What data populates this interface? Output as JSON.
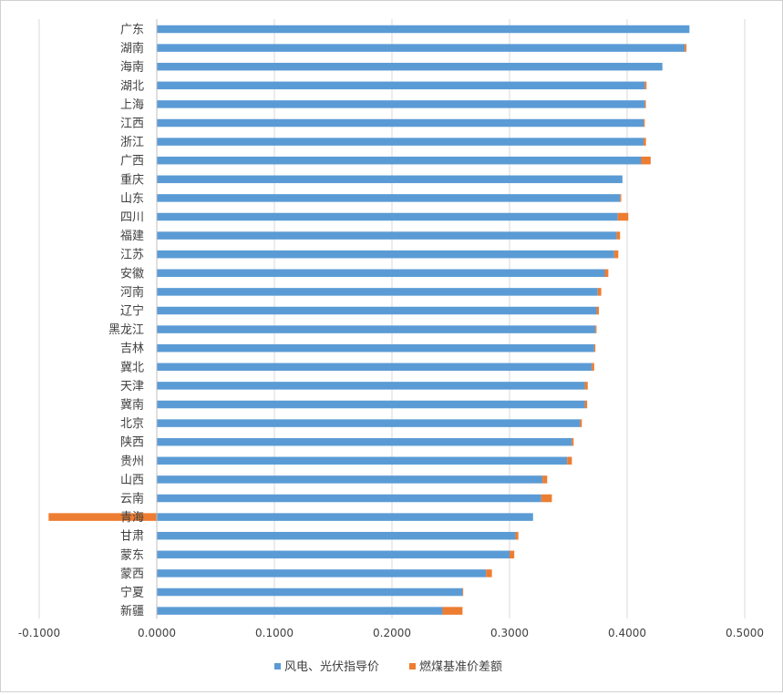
{
  "chart_data": {
    "type": "bar",
    "orientation": "horizontal",
    "stacked": true,
    "title": "",
    "xlabel": "",
    "ylabel": "",
    "xlim": [
      -0.1,
      0.5
    ],
    "x_ticks": [
      "-0.1000",
      "0.0000",
      "0.1000",
      "0.2000",
      "0.3000",
      "0.4000",
      "0.5000"
    ],
    "x_tick_values": [
      -0.1,
      0.0,
      0.1,
      0.2,
      0.3,
      0.4,
      0.5
    ],
    "grid": "vertical",
    "legend": "bottom",
    "categories": [
      "广东",
      "湖南",
      "海南",
      "湖北",
      "上海",
      "江西",
      "浙江",
      "广西",
      "重庆",
      "山东",
      "四川",
      "福建",
      "江苏",
      "安徽",
      "河南",
      "辽宁",
      "黑龙江",
      "吉林",
      "冀北",
      "天津",
      "冀南",
      "北京",
      "陕西",
      "贵州",
      "山西",
      "云南",
      "青海",
      "甘肃",
      "蒙东",
      "蒙西",
      "宁夏",
      "新疆"
    ],
    "series": [
      {
        "name": "风电、光伏指导价",
        "color": "#5b9bd5",
        "values": [
          0.453,
          0.449,
          0.43,
          0.415,
          0.415,
          0.414,
          0.414,
          0.412,
          0.396,
          0.394,
          0.392,
          0.391,
          0.389,
          0.381,
          0.375,
          0.374,
          0.373,
          0.372,
          0.37,
          0.364,
          0.364,
          0.36,
          0.353,
          0.349,
          0.328,
          0.327,
          0.32,
          0.305,
          0.3,
          0.28,
          0.26,
          0.243
        ]
      },
      {
        "name": "燃煤基准价差额",
        "color": "#ed7d31",
        "values": [
          0.0,
          0.0015,
          0.0,
          0.0015,
          0.001,
          0.001,
          0.002,
          0.008,
          0.0,
          0.001,
          0.009,
          0.003,
          0.0035,
          0.003,
          0.003,
          0.002,
          0.001,
          0.001,
          0.002,
          0.0025,
          0.002,
          0.0015,
          0.0015,
          0.004,
          0.004,
          0.009,
          -0.092,
          0.0025,
          0.004,
          0.005,
          0.0005,
          0.017
        ]
      }
    ]
  }
}
